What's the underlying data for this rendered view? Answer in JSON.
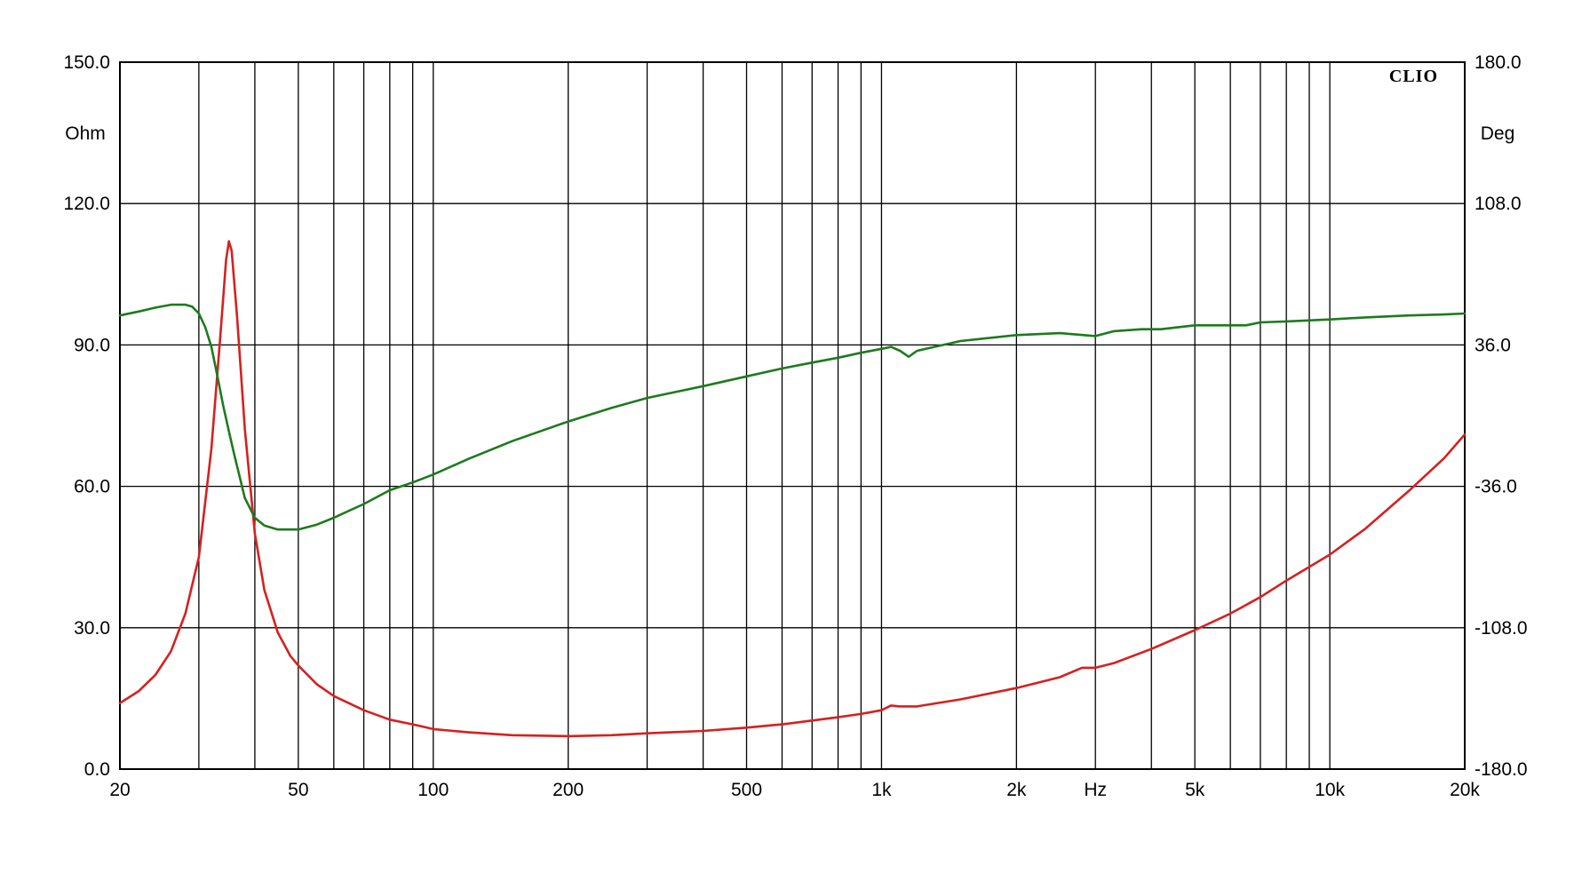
{
  "chart_data": {
    "type": "line",
    "brand": "CLIO",
    "x_scale": "log",
    "xlim": [
      20,
      20000
    ],
    "x_unit": "Hz",
    "x_ticks": [
      {
        "value": 20,
        "label": "20"
      },
      {
        "value": 50,
        "label": "50"
      },
      {
        "value": 100,
        "label": "100"
      },
      {
        "value": 200,
        "label": "200"
      },
      {
        "value": 500,
        "label": "500"
      },
      {
        "value": 1000,
        "label": "1k"
      },
      {
        "value": 2000,
        "label": "2k"
      },
      {
        "value": 3000,
        "label": "Hz"
      },
      {
        "value": 5000,
        "label": "5k"
      },
      {
        "value": 10000,
        "label": "10k"
      },
      {
        "value": 20000,
        "label": "20k"
      }
    ],
    "y_left": {
      "unit": "Ohm",
      "lim": [
        0,
        150
      ],
      "ticks": [
        {
          "value": 0,
          "label": "0.0"
        },
        {
          "value": 30,
          "label": "30.0"
        },
        {
          "value": 60,
          "label": "60.0"
        },
        {
          "value": 90,
          "label": "90.0"
        },
        {
          "value": 120,
          "label": "120.0"
        },
        {
          "value": 150,
          "label": "150.0"
        }
      ]
    },
    "y_right": {
      "unit": "Deg",
      "lim": [
        -180,
        180
      ],
      "ticks": [
        {
          "value": -180,
          "label": "-180.0"
        },
        {
          "value": -108,
          "label": "-108.0"
        },
        {
          "value": -36,
          "label": "-36.0"
        },
        {
          "value": 36,
          "label": "36.0"
        },
        {
          "value": 108,
          "label": "108.0"
        },
        {
          "value": 180,
          "label": "180.0"
        }
      ]
    },
    "grid": true,
    "series": [
      {
        "id": "impedance",
        "axis": "left",
        "color": "#d62020",
        "points": [
          [
            20,
            14
          ],
          [
            22,
            16.5
          ],
          [
            24,
            20
          ],
          [
            26,
            25
          ],
          [
            28,
            33
          ],
          [
            30,
            45
          ],
          [
            32,
            68
          ],
          [
            33.5,
            92
          ],
          [
            34.5,
            108
          ],
          [
            35,
            112
          ],
          [
            35.5,
            110
          ],
          [
            36.5,
            96
          ],
          [
            38,
            72
          ],
          [
            40,
            50
          ],
          [
            42,
            38
          ],
          [
            45,
            29
          ],
          [
            48,
            24
          ],
          [
            50,
            22
          ],
          [
            55,
            18
          ],
          [
            60,
            15.5
          ],
          [
            70,
            12.5
          ],
          [
            80,
            10.5
          ],
          [
            90,
            9.5
          ],
          [
            100,
            8.5
          ],
          [
            120,
            7.8
          ],
          [
            150,
            7.2
          ],
          [
            200,
            7
          ],
          [
            250,
            7.2
          ],
          [
            300,
            7.6
          ],
          [
            400,
            8.1
          ],
          [
            500,
            8.8
          ],
          [
            600,
            9.5
          ],
          [
            700,
            10.3
          ],
          [
            800,
            11
          ],
          [
            900,
            11.7
          ],
          [
            1000,
            12.5
          ],
          [
            1050,
            13.5
          ],
          [
            1100,
            13.3
          ],
          [
            1200,
            13.3
          ],
          [
            1500,
            14.8
          ],
          [
            2000,
            17.2
          ],
          [
            2500,
            19.5
          ],
          [
            2800,
            21.5
          ],
          [
            3000,
            21.5
          ],
          [
            3300,
            22.5
          ],
          [
            4000,
            25.5
          ],
          [
            5000,
            29.5
          ],
          [
            6000,
            33
          ],
          [
            7000,
            36.5
          ],
          [
            8000,
            40
          ],
          [
            10000,
            45.5
          ],
          [
            12000,
            51
          ],
          [
            15000,
            59
          ],
          [
            18000,
            66
          ],
          [
            20000,
            71
          ]
        ]
      },
      {
        "id": "phase",
        "axis": "right",
        "color": "#1e7a1e",
        "points": [
          [
            20,
            51
          ],
          [
            22,
            53
          ],
          [
            24,
            55
          ],
          [
            26,
            56.5
          ],
          [
            28,
            56.5
          ],
          [
            29,
            55.5
          ],
          [
            30,
            52
          ],
          [
            31,
            45
          ],
          [
            32,
            35
          ],
          [
            33,
            20
          ],
          [
            34,
            5
          ],
          [
            35,
            -8
          ],
          [
            36,
            -20
          ],
          [
            38,
            -42
          ],
          [
            40,
            -52
          ],
          [
            42,
            -56
          ],
          [
            45,
            -58
          ],
          [
            50,
            -58
          ],
          [
            55,
            -55.5
          ],
          [
            60,
            -52
          ],
          [
            70,
            -45
          ],
          [
            80,
            -38
          ],
          [
            90,
            -34
          ],
          [
            100,
            -30
          ],
          [
            120,
            -22
          ],
          [
            150,
            -13
          ],
          [
            200,
            -3
          ],
          [
            250,
            4
          ],
          [
            300,
            9
          ],
          [
            400,
            15
          ],
          [
            500,
            20
          ],
          [
            600,
            24
          ],
          [
            700,
            27
          ],
          [
            800,
            29.5
          ],
          [
            900,
            32
          ],
          [
            1000,
            34
          ],
          [
            1050,
            35
          ],
          [
            1100,
            33
          ],
          [
            1150,
            30
          ],
          [
            1200,
            33
          ],
          [
            1500,
            38
          ],
          [
            2000,
            41
          ],
          [
            2500,
            42
          ],
          [
            3000,
            40.5
          ],
          [
            3300,
            43
          ],
          [
            3800,
            44
          ],
          [
            4200,
            44
          ],
          [
            5000,
            46
          ],
          [
            6000,
            46
          ],
          [
            6500,
            46
          ],
          [
            7000,
            47.5
          ],
          [
            8000,
            48
          ],
          [
            10000,
            49
          ],
          [
            12000,
            50
          ],
          [
            15000,
            51
          ],
          [
            18000,
            51.5
          ],
          [
            20000,
            52
          ]
        ]
      }
    ]
  }
}
